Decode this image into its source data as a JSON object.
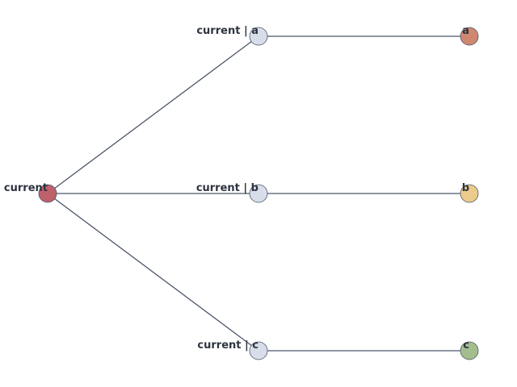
{
  "nodes": {
    "root": {
      "label": "current",
      "color": "#bf616a"
    },
    "mid_a": {
      "label": "current | a",
      "color": "#d8dee9"
    },
    "mid_b": {
      "label": "current | b",
      "color": "#d8dee9"
    },
    "mid_c": {
      "label": "current | c",
      "color": "#d8dee9"
    },
    "leaf_a": {
      "label": "a",
      "color": "#d08770"
    },
    "leaf_b": {
      "label": "b",
      "color": "#ebcb8b"
    },
    "leaf_c": {
      "label": "c",
      "color": "#a3be8c"
    }
  },
  "edges": [
    {
      "from": "current",
      "to": "current | a"
    },
    {
      "from": "current",
      "to": "current | b"
    },
    {
      "from": "current",
      "to": "current | c"
    },
    {
      "from": "current | a",
      "to": "a"
    },
    {
      "from": "current | b",
      "to": "b"
    },
    {
      "from": "current | c",
      "to": "c"
    }
  ]
}
